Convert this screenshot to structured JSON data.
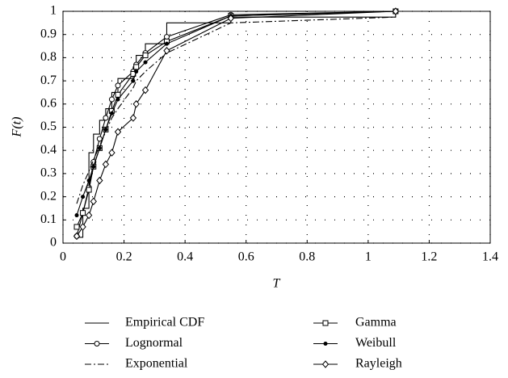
{
  "chart_data": {
    "type": "line",
    "x_label": "T",
    "y_label": "F(t)",
    "xlim": [
      0,
      1.4
    ],
    "xticks": [
      0,
      0.2,
      0.4,
      0.6,
      0.8,
      1,
      1.2,
      1.4
    ],
    "ylim": [
      0,
      1
    ],
    "yticks": [
      0,
      0.1,
      0.2,
      0.3,
      0.4,
      0.5,
      0.6,
      0.7,
      0.8,
      0.9,
      1
    ],
    "grid": true,
    "legend": "bottom",
    "series": [
      {
        "name": "Empirical CDF",
        "color": "#000000",
        "step": true,
        "marker": "none",
        "dash": "none",
        "x": [
          0.045,
          0.065,
          0.085,
          0.1,
          0.12,
          0.14,
          0.16,
          0.18,
          0.23,
          0.24,
          0.27,
          0.34,
          0.55,
          1.09
        ],
        "values": [
          0.025,
          0.15,
          0.39,
          0.47,
          0.53,
          0.58,
          0.65,
          0.71,
          0.76,
          0.81,
          0.86,
          0.95,
          0.975,
          1
        ]
      },
      {
        "name": "Lognormal",
        "color": "#000000",
        "marker": "circle",
        "dash": "none",
        "x": [
          0.045,
          0.065,
          0.085,
          0.1,
          0.12,
          0.14,
          0.16,
          0.18,
          0.23,
          0.24,
          0.27,
          0.34,
          0.55,
          1.09
        ],
        "values": [
          0.03,
          0.13,
          0.24,
          0.35,
          0.45,
          0.54,
          0.62,
          0.68,
          0.74,
          0.77,
          0.82,
          0.89,
          0.985,
          1
        ]
      },
      {
        "name": "Exponential",
        "color": "#000000",
        "marker": "none",
        "dash": "dashdot",
        "x": [
          0.045,
          0.065,
          0.085,
          0.1,
          0.12,
          0.14,
          0.16,
          0.18,
          0.23,
          0.24,
          0.27,
          0.34,
          0.55,
          1.09
        ],
        "values": [
          0.17,
          0.25,
          0.31,
          0.36,
          0.42,
          0.48,
          0.54,
          0.58,
          0.67,
          0.7,
          0.74,
          0.82,
          0.95,
          0.975
        ]
      },
      {
        "name": "Gamma",
        "color": "#000000",
        "marker": "square",
        "dash": "none",
        "x": [
          0.045,
          0.065,
          0.085,
          0.1,
          0.12,
          0.14,
          0.16,
          0.18,
          0.23,
          0.24,
          0.27,
          0.34,
          0.55,
          1.09
        ],
        "values": [
          0.07,
          0.13,
          0.23,
          0.33,
          0.41,
          0.49,
          0.57,
          0.64,
          0.73,
          0.76,
          0.81,
          0.87,
          0.98,
          1
        ]
      },
      {
        "name": "Weibull",
        "color": "#000000",
        "marker": "dot",
        "dash": "none",
        "x": [
          0.045,
          0.065,
          0.085,
          0.1,
          0.12,
          0.14,
          0.16,
          0.18,
          0.23,
          0.24,
          0.27,
          0.34,
          0.55,
          1.09
        ],
        "values": [
          0.12,
          0.2,
          0.27,
          0.33,
          0.41,
          0.49,
          0.56,
          0.62,
          0.7,
          0.74,
          0.78,
          0.86,
          0.98,
          1
        ]
      },
      {
        "name": "Rayleigh",
        "color": "#000000",
        "marker": "diamond",
        "dash": "none",
        "x": [
          0.045,
          0.065,
          0.085,
          0.1,
          0.12,
          0.14,
          0.16,
          0.18,
          0.23,
          0.24,
          0.27,
          0.34,
          0.55,
          1.09
        ],
        "values": [
          0.03,
          0.07,
          0.12,
          0.18,
          0.27,
          0.34,
          0.39,
          0.48,
          0.54,
          0.6,
          0.66,
          0.83,
          0.97,
          1
        ]
      }
    ]
  }
}
